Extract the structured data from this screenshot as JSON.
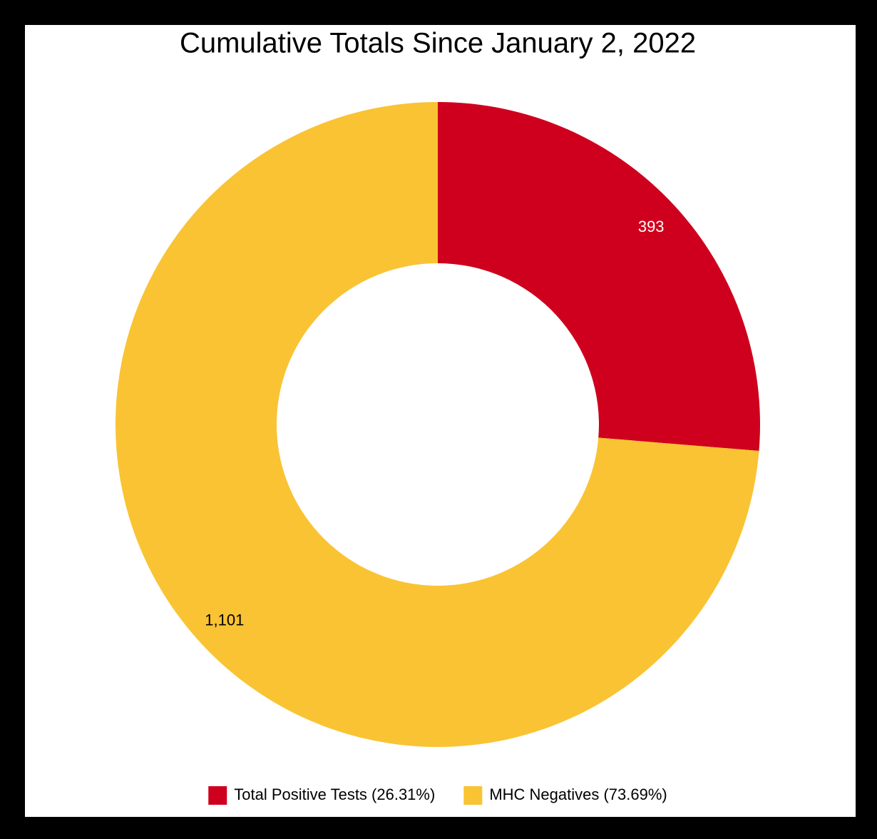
{
  "chart_data": {
    "type": "donut",
    "title": "Cumulative Totals Since January 2, 2022",
    "categories": [
      "Total Positive Tests (26.31%)",
      "MHC Negatives (73.69%)"
    ],
    "values": [
      393,
      1101
    ],
    "value_labels": [
      "393",
      "1,101"
    ],
    "colors": [
      "#cf001d",
      "#f9c333"
    ],
    "legend": "bottom"
  }
}
